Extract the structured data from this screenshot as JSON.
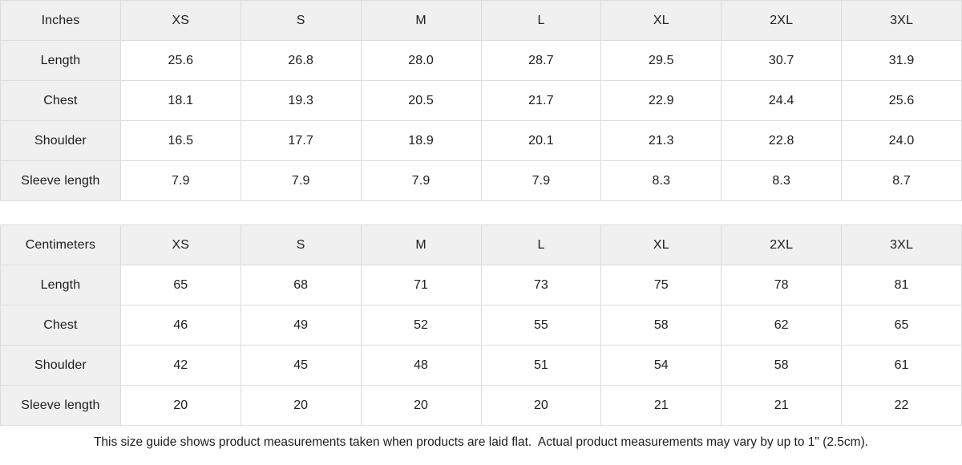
{
  "colors": {
    "header_bg": "#f0f0f1",
    "border": "#dcdcdc",
    "text": "#1d1d1f",
    "background": "#ffffff"
  },
  "tables": [
    {
      "unit_label": "Inches",
      "sizes": [
        "XS",
        "S",
        "M",
        "L",
        "XL",
        "2XL",
        "3XL"
      ],
      "rows": [
        {
          "label": "Length",
          "values": [
            "25.6",
            "26.8",
            "28.0",
            "28.7",
            "29.5",
            "30.7",
            "31.9"
          ]
        },
        {
          "label": "Chest",
          "values": [
            "18.1",
            "19.3",
            "20.5",
            "21.7",
            "22.9",
            "24.4",
            "25.6"
          ]
        },
        {
          "label": "Shoulder",
          "values": [
            "16.5",
            "17.7",
            "18.9",
            "20.1",
            "21.3",
            "22.8",
            "24.0"
          ]
        },
        {
          "label": "Sleeve length",
          "values": [
            "7.9",
            "7.9",
            "7.9",
            "7.9",
            "8.3",
            "8.3",
            "8.7"
          ]
        }
      ]
    },
    {
      "unit_label": "Centimeters",
      "sizes": [
        "XS",
        "S",
        "M",
        "L",
        "XL",
        "2XL",
        "3XL"
      ],
      "rows": [
        {
          "label": "Length",
          "values": [
            "65",
            "68",
            "71",
            "73",
            "75",
            "78",
            "81"
          ]
        },
        {
          "label": "Chest",
          "values": [
            "46",
            "49",
            "52",
            "55",
            "58",
            "62",
            "65"
          ]
        },
        {
          "label": "Shoulder",
          "values": [
            "42",
            "45",
            "48",
            "51",
            "54",
            "58",
            "61"
          ]
        },
        {
          "label": "Sleeve length",
          "values": [
            "20",
            "20",
            "20",
            "20",
            "21",
            "21",
            "22"
          ]
        }
      ]
    }
  ],
  "footer": {
    "note": "This size guide shows product measurements taken when products are laid flat.  Actual product measurements may vary by up to 1\" (2.5cm)."
  },
  "chart_data": [
    {
      "type": "table",
      "title": "Inches",
      "columns": [
        "Inches",
        "XS",
        "S",
        "M",
        "L",
        "XL",
        "2XL",
        "3XL"
      ],
      "rows": [
        [
          "Length",
          25.6,
          26.8,
          28.0,
          28.7,
          29.5,
          30.7,
          31.9
        ],
        [
          "Chest",
          18.1,
          19.3,
          20.5,
          21.7,
          22.9,
          24.4,
          25.6
        ],
        [
          "Shoulder",
          16.5,
          17.7,
          18.9,
          20.1,
          21.3,
          22.8,
          24.0
        ],
        [
          "Sleeve length",
          7.9,
          7.9,
          7.9,
          7.9,
          8.3,
          8.3,
          8.7
        ]
      ]
    },
    {
      "type": "table",
      "title": "Centimeters",
      "columns": [
        "Centimeters",
        "XS",
        "S",
        "M",
        "L",
        "XL",
        "2XL",
        "3XL"
      ],
      "rows": [
        [
          "Length",
          65,
          68,
          71,
          73,
          75,
          78,
          81
        ],
        [
          "Chest",
          46,
          49,
          52,
          55,
          58,
          62,
          65
        ],
        [
          "Shoulder",
          42,
          45,
          48,
          51,
          54,
          58,
          61
        ],
        [
          "Sleeve length",
          20,
          20,
          20,
          20,
          21,
          21,
          22
        ]
      ]
    }
  ]
}
